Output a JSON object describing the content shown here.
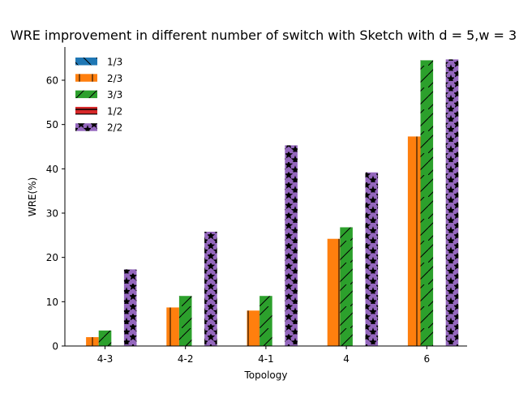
{
  "chart_data": {
    "type": "bar",
    "title": "WRE improvement in different number of switch with Sketch with d = 5,w = 3",
    "xlabel": "Topology",
    "ylabel": "WRE(%)",
    "ylim": [
      0,
      67.5
    ],
    "yticks": [
      0,
      10,
      20,
      30,
      40,
      50,
      60
    ],
    "categories": [
      "4-3",
      "4-2",
      "4-1",
      "4",
      "6"
    ],
    "legend_position": "top-left",
    "series": [
      {
        "name": "1/3",
        "color": "#1f77b4",
        "hatch": "backslash",
        "values": [
          0,
          0,
          0,
          0,
          0
        ]
      },
      {
        "name": "2/3",
        "color": "#ff7f0e",
        "hatch": "vertical",
        "values": [
          2.0,
          8.7,
          8.0,
          24.2,
          47.3
        ]
      },
      {
        "name": "3/3",
        "color": "#2ca02c",
        "hatch": "slash",
        "values": [
          3.5,
          11.3,
          11.3,
          26.8,
          64.5
        ]
      },
      {
        "name": "1/2",
        "color": "#d62728",
        "hatch": "horizontal",
        "values": [
          0,
          0,
          0,
          0,
          0
        ]
      },
      {
        "name": "2/2",
        "color": "#9467bd",
        "hatch": "star",
        "values": [
          17.3,
          25.8,
          45.3,
          39.2,
          64.7
        ]
      }
    ]
  }
}
